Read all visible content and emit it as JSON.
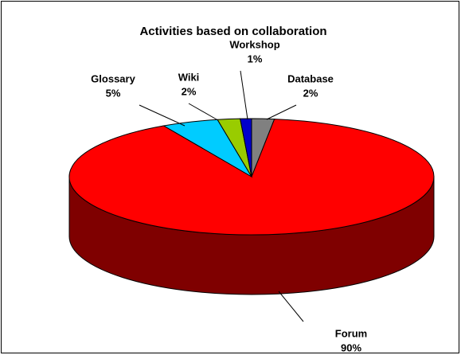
{
  "chart_data": {
    "type": "pie",
    "title": "Activities based on collaboration",
    "categories": [
      "Database",
      "Forum",
      "Glossary",
      "Wiki",
      "Workshop"
    ],
    "values": [
      2,
      90,
      5,
      2,
      1
    ],
    "value_labels": [
      "2%",
      "90%",
      "5%",
      "2%",
      "1%"
    ],
    "colors": [
      "#808080",
      "#ff0000",
      "#00ccff",
      "#99cc00",
      "#0000cc"
    ]
  }
}
